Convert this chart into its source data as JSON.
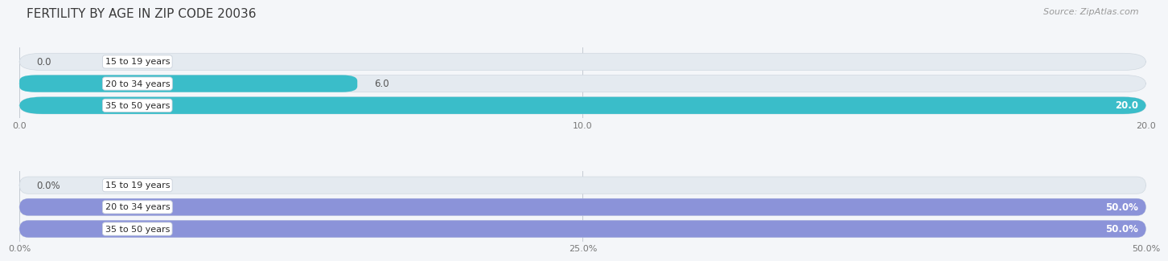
{
  "title": "FERTILITY BY AGE IN ZIP CODE 20036",
  "source": "Source: ZipAtlas.com",
  "top_bars": {
    "categories": [
      "15 to 19 years",
      "20 to 34 years",
      "35 to 50 years"
    ],
    "values": [
      0.0,
      6.0,
      20.0
    ],
    "xlim": [
      0,
      20
    ],
    "xticks": [
      0.0,
      10.0,
      20.0
    ],
    "xtick_labels": [
      "0.0",
      "10.0",
      "20.0"
    ],
    "bar_color_main": "#3abdc9",
    "bar_color_light": "#88d5dc",
    "label_inside_color": "#ffffff",
    "label_outside_color": "#555555",
    "bar_bg_color": "#e4eaf0",
    "bar_bg_edge": "#d0d8e0"
  },
  "bottom_bars": {
    "categories": [
      "15 to 19 years",
      "20 to 34 years",
      "35 to 50 years"
    ],
    "values": [
      0.0,
      50.0,
      50.0
    ],
    "xlim": [
      0,
      50
    ],
    "xticks": [
      0.0,
      25.0,
      50.0
    ],
    "xtick_labels": [
      "0.0%",
      "25.0%",
      "50.0%"
    ],
    "bar_color_main": "#8b93d9",
    "bar_color_light": "#b0b6e5",
    "label_inside_color": "#ffffff",
    "label_outside_color": "#555555",
    "bar_bg_color": "#e4eaf0",
    "bar_bg_edge": "#d0d8e0"
  },
  "background_color": "#f4f6f9",
  "title_color": "#3a3a3a",
  "title_fontsize": 11,
  "source_color": "#999999",
  "source_fontsize": 8,
  "category_fontsize": 8,
  "value_fontsize": 8.5
}
